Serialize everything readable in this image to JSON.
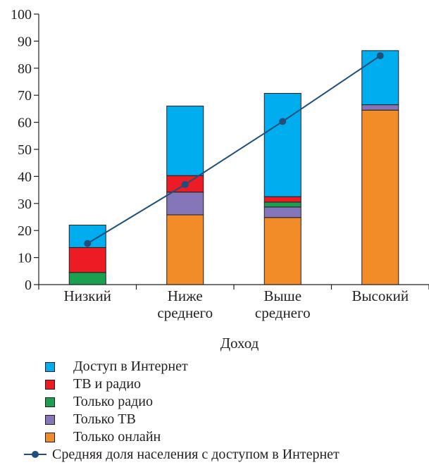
{
  "chart_data": {
    "type": "bar",
    "stacked": true,
    "xlabel": "Доход",
    "ylabel": "",
    "ylim": [
      0,
      100
    ],
    "yticks": [
      0,
      10,
      20,
      30,
      40,
      50,
      60,
      70,
      80,
      90,
      100
    ],
    "categories": [
      "Низкий",
      "Ниже среднего",
      "Выше среднего",
      "Высокий"
    ],
    "series": [
      {
        "name": "Только онлайн",
        "color": "#f28c28",
        "values": [
          0,
          25.8,
          24.8,
          64.5
        ]
      },
      {
        "name": "Только ТВ",
        "color": "#8476b8",
        "values": [
          0,
          8.4,
          3.9,
          2.0
        ]
      },
      {
        "name": "Только радио",
        "color": "#1aa050",
        "values": [
          4.5,
          0,
          1.8,
          0
        ]
      },
      {
        "name": "ТВ и радио",
        "color": "#ed1c24",
        "values": [
          9.2,
          6.1,
          2.0,
          0
        ]
      },
      {
        "name": "Доступ в Интернет",
        "color": "#00aeef",
        "values": [
          8.3,
          25.7,
          38.2,
          20.0
        ]
      }
    ],
    "line_series": {
      "name": "Средняя доля населения с доступом в Интернет",
      "color": "#1f4f7a",
      "values": [
        15.2,
        37.0,
        60.3,
        84.6
      ]
    },
    "legend_position": "bottom",
    "grid": false
  }
}
